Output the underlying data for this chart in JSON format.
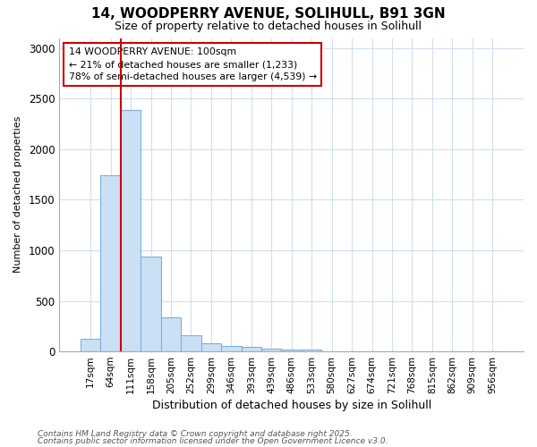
{
  "title1": "14, WOODPERRY AVENUE, SOLIHULL, B91 3GN",
  "title2": "Size of property relative to detached houses in Solihull",
  "xlabel": "Distribution of detached houses by size in Solihull",
  "ylabel": "Number of detached properties",
  "categories": [
    "17sqm",
    "64sqm",
    "111sqm",
    "158sqm",
    "205sqm",
    "252sqm",
    "299sqm",
    "346sqm",
    "393sqm",
    "439sqm",
    "486sqm",
    "533sqm",
    "580sqm",
    "627sqm",
    "674sqm",
    "721sqm",
    "768sqm",
    "815sqm",
    "862sqm",
    "909sqm",
    "956sqm"
  ],
  "values": [
    120,
    1740,
    2390,
    940,
    340,
    160,
    80,
    50,
    45,
    25,
    15,
    20,
    5,
    0,
    0,
    0,
    0,
    0,
    0,
    0,
    0
  ],
  "bar_color": "#cce0f5",
  "bar_edge_color": "#7db0d9",
  "red_line_index": 2,
  "annotation_line1": "14 WOODPERRY AVENUE: 100sqm",
  "annotation_line2": "← 21% of detached houses are smaller (1,233)",
  "annotation_line3": "78% of semi-detached houses are larger (4,539) →",
  "annotation_box_color": "#ffffff",
  "annotation_border_color": "#cc0000",
  "ylim": [
    0,
    3100
  ],
  "yticks": [
    0,
    500,
    1000,
    1500,
    2000,
    2500,
    3000
  ],
  "footer1": "Contains HM Land Registry data © Crown copyright and database right 2025.",
  "footer2": "Contains public sector information licensed under the Open Government Licence v3.0.",
  "bg_color": "#ffffff",
  "plot_bg_color": "#ffffff",
  "grid_color": "#d0dff0"
}
